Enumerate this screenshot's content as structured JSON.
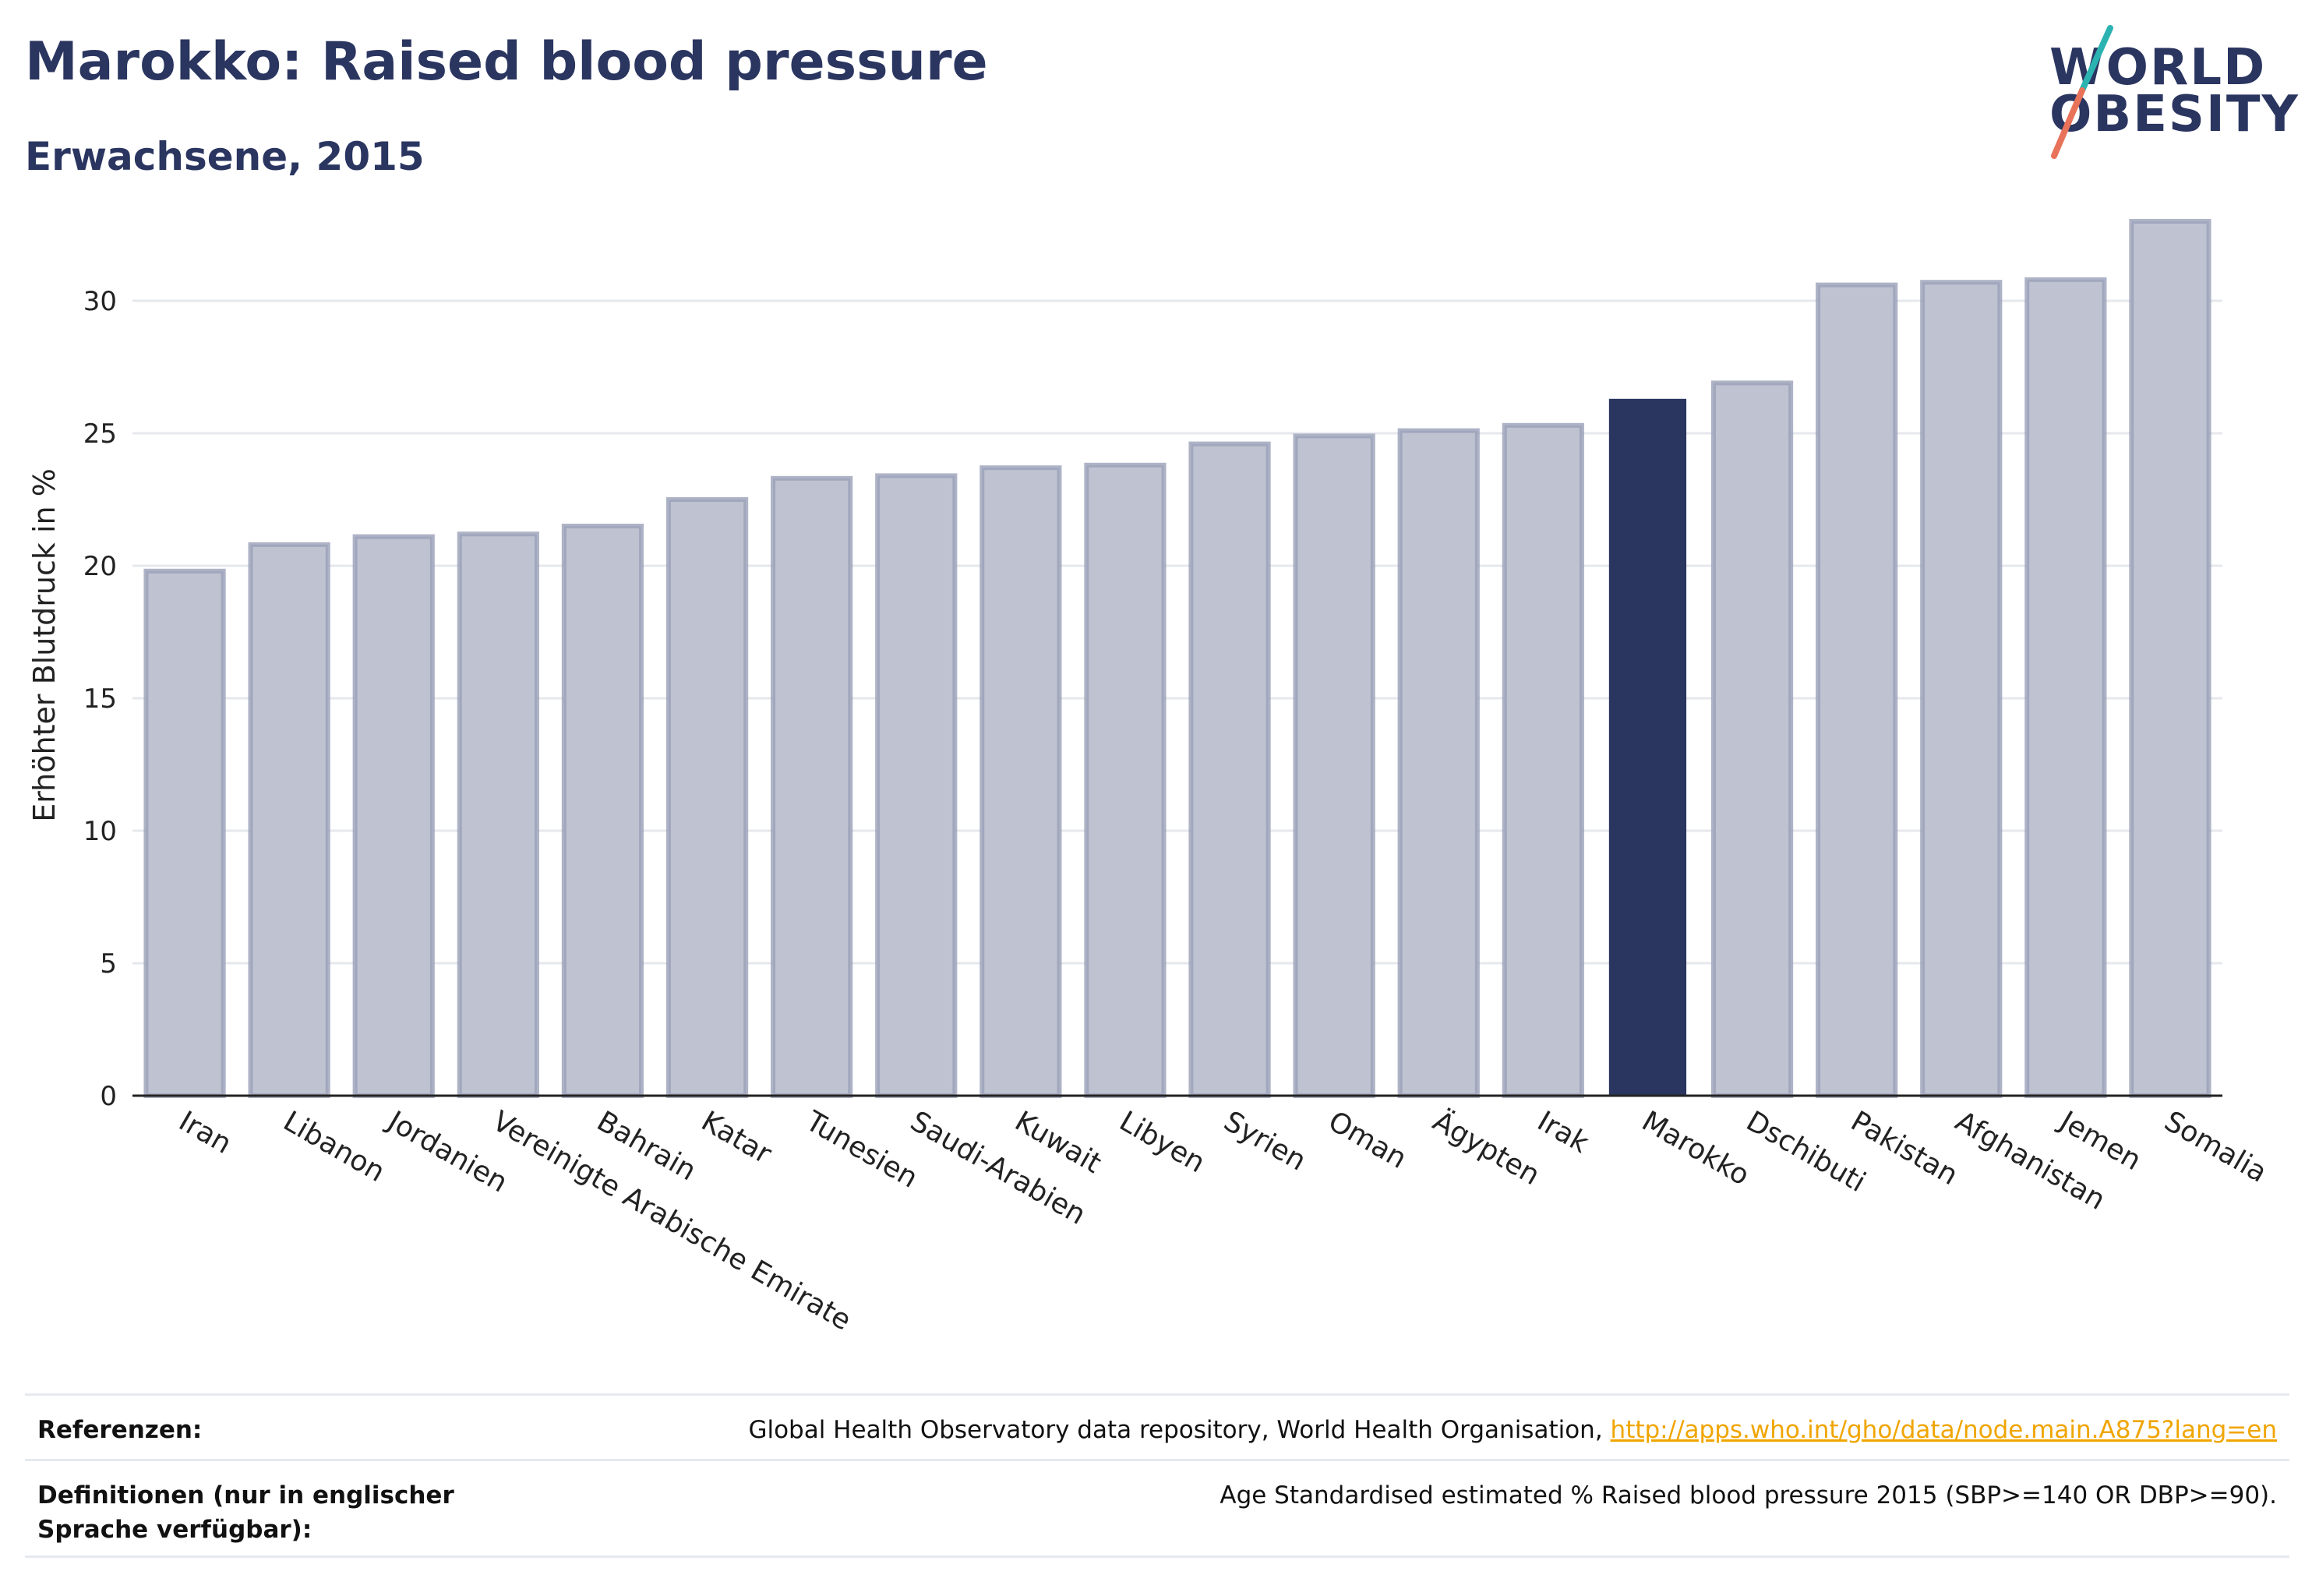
{
  "header": {
    "title": "Marokko: Raised blood pressure",
    "subtitle": "Erwachsene, 2015"
  },
  "logo": {
    "line1": "WORLD",
    "line2": "OBESITY",
    "accent_teal": "#2bb3b1",
    "accent_coral": "#e8735a"
  },
  "chart_data": {
    "type": "bar",
    "categories": [
      "Iran",
      "Libanon",
      "Jordanien",
      "Vereinigte Arabische Emirate",
      "Bahrain",
      "Katar",
      "Tunesien",
      "Saudi-Arabien",
      "Kuwait",
      "Libyen",
      "Syrien",
      "Oman",
      "Ägypten",
      "Irak",
      "Marokko",
      "Dschibuti",
      "Pakistan",
      "Afghanistan",
      "Jemen",
      "Somalia"
    ],
    "values": [
      19.8,
      20.8,
      21.1,
      21.2,
      21.5,
      22.5,
      23.3,
      23.4,
      23.7,
      23.8,
      24.6,
      24.9,
      25.1,
      25.3,
      26.3,
      26.9,
      30.6,
      30.7,
      30.8,
      33.0
    ],
    "highlight": "Marokko",
    "title": "Marokko: Raised blood pressure",
    "subtitle": "Erwachsene, 2015",
    "xlabel": "",
    "ylabel": "Erhöhter Blutdruck in %",
    "ylim": [
      0,
      34
    ],
    "yticks": [
      0,
      5,
      10,
      15,
      20,
      25,
      30
    ],
    "grid": true,
    "colors": {
      "bar": "#bfc3d1",
      "bar_edge": "#9aa0b8",
      "highlight": "#2a3560",
      "grid": "#e6e8ee",
      "axis": "#222222"
    }
  },
  "footer": {
    "references_label": "Referenzen:",
    "references_text": "Global Health Observatory data repository, World Health Organisation, ",
    "references_link": "http://apps.who.int/gho/data/node.main.A875?lang=en",
    "definitions_label": "Definitionen (nur in englischer Sprache verfügbar):",
    "definitions_text": "Age Standardised estimated % Raised blood pressure 2015 (SBP>=140 OR DBP>=90)."
  }
}
